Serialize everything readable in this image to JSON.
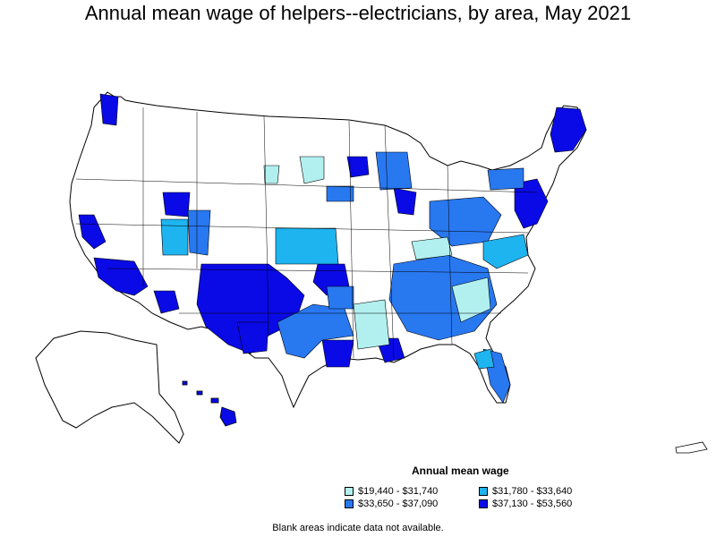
{
  "title": "Annual mean wage of helpers--electricians, by area, May 2021",
  "legend": {
    "title": "Annual mean wage",
    "items": [
      {
        "label": "$19,440 - $31,740",
        "color": "#b2f0f0"
      },
      {
        "label": "$31,780 - $33,640",
        "color": "#1eb4f0"
      },
      {
        "label": "$33,650 - $37,090",
        "color": "#2878f0"
      },
      {
        "label": "$37,130 - $53,560",
        "color": "#0a0ae6"
      }
    ]
  },
  "footnote": "Blank areas indicate data not available."
}
